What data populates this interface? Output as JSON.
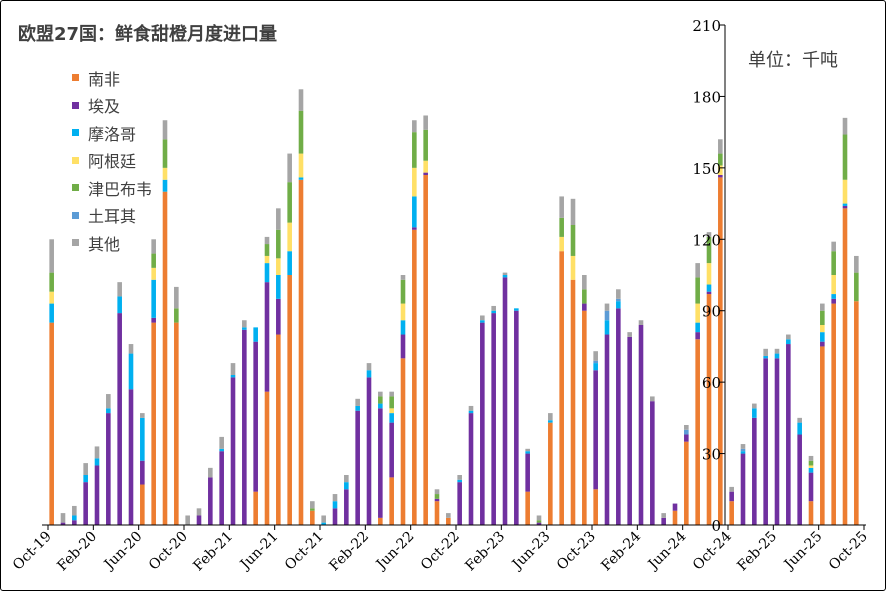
{
  "chart_data": {
    "type": "bar",
    "stacked": true,
    "title": "欧盟27国：鲜食甜橙月度进口量",
    "unit_label": "单位：千吨",
    "ylim": [
      0,
      210
    ],
    "yticks": [
      0,
      30,
      60,
      90,
      120,
      150,
      180,
      210
    ],
    "y_axis_position": "right",
    "legend_position": "top-left",
    "x_labels": [
      "Oct-19",
      "Feb-20",
      "Jun-20",
      "Oct-20",
      "Feb-21",
      "Jun-21",
      "Oct-21",
      "Feb-22",
      "Jun-22",
      "Oct-22",
      "Feb-23",
      "Jun-23",
      "Oct-23",
      "Feb-24",
      "Jun-24",
      "Oct-24",
      "Feb-25",
      "Jun-25",
      "Oct-25"
    ],
    "x_label_positions": [
      0,
      4,
      8,
      12,
      16,
      20,
      24,
      28,
      32,
      36,
      40,
      44,
      48,
      52,
      56,
      60,
      64,
      68,
      72
    ],
    "series": [
      {
        "name": "南非",
        "color": "#ED7D31",
        "values": [
          85,
          0,
          0,
          0,
          0,
          0,
          0,
          0,
          17,
          85,
          140,
          85,
          0,
          0,
          0,
          0,
          0,
          0,
          14,
          56,
          80,
          105,
          145,
          6,
          0,
          0,
          0,
          0,
          0,
          3,
          20,
          70,
          124,
          147,
          10,
          3,
          0,
          0,
          0,
          0,
          0,
          0,
          14,
          0,
          43,
          115,
          103,
          90,
          15,
          0,
          0,
          0,
          0,
          0,
          0,
          6,
          35,
          78,
          97,
          146,
          10,
          0,
          0,
          0,
          0,
          0,
          0,
          10,
          75,
          93,
          133,
          94
        ]
      },
      {
        "name": "埃及",
        "color": "#7030A0",
        "values": [
          0,
          1,
          2,
          18,
          25,
          47,
          89,
          57,
          10,
          2,
          0,
          0,
          0,
          4,
          20,
          31,
          62,
          82,
          63,
          46,
          15,
          0,
          0,
          0,
          0,
          7,
          15,
          48,
          62,
          46,
          23,
          10,
          1,
          1,
          1,
          0,
          18,
          47,
          85,
          89,
          104,
          90,
          16,
          1,
          0,
          0,
          0,
          3,
          50,
          80,
          91,
          79,
          84,
          52,
          3,
          3,
          3,
          3,
          1,
          1,
          4,
          30,
          45,
          70,
          70,
          76,
          38,
          12,
          2,
          2,
          1,
          0
        ]
      },
      {
        "name": "摩洛哥",
        "color": "#00B0F0",
        "values": [
          8,
          0,
          2,
          3,
          3,
          2,
          7,
          15,
          18,
          16,
          5,
          0,
          0,
          0,
          0,
          1,
          1,
          1,
          6,
          8,
          10,
          10,
          1,
          0,
          1,
          3,
          3,
          2,
          3,
          2,
          4,
          6,
          13,
          0,
          0,
          0,
          1,
          1,
          1,
          1,
          1,
          1,
          1,
          0,
          1,
          0,
          0,
          0,
          3,
          6,
          3,
          0,
          0,
          0,
          0,
          0,
          0,
          4,
          3,
          0,
          0,
          1,
          4,
          1,
          2,
          2,
          5,
          2,
          4,
          2,
          1,
          0
        ]
      },
      {
        "name": "阿根廷",
        "color": "#FFE066",
        "values": [
          5,
          0,
          0,
          0,
          0,
          0,
          0,
          0,
          0,
          5,
          5,
          0,
          0,
          0,
          0,
          0,
          0,
          0,
          0,
          3,
          7,
          12,
          10,
          0,
          0,
          0,
          0,
          0,
          0,
          0,
          2,
          7,
          12,
          5,
          0,
          0,
          0,
          0,
          0,
          0,
          0,
          0,
          0,
          0,
          0,
          6,
          10,
          0,
          0,
          0,
          0,
          0,
          0,
          0,
          0,
          0,
          0,
          8,
          9,
          4,
          0,
          0,
          0,
          0,
          0,
          0,
          0,
          1,
          3,
          8,
          10,
          0
        ]
      },
      {
        "name": "津巴布韦",
        "color": "#70AD47",
        "values": [
          8,
          0,
          0,
          0,
          0,
          0,
          0,
          0,
          0,
          6,
          12,
          6,
          0,
          0,
          0,
          0,
          0,
          0,
          0,
          5,
          12,
          17,
          18,
          1,
          0,
          0,
          0,
          0,
          0,
          3,
          5,
          10,
          15,
          13,
          2,
          0,
          0,
          0,
          0,
          0,
          0,
          0,
          0,
          1,
          0,
          8,
          13,
          6,
          0,
          0,
          0,
          0,
          0,
          0,
          0,
          0,
          0,
          11,
          11,
          5,
          0,
          0,
          0,
          0,
          0,
          0,
          0,
          2,
          6,
          10,
          19,
          12
        ]
      },
      {
        "name": "土耳其",
        "color": "#5B9BD5",
        "values": [
          0,
          0,
          0,
          0,
          0,
          0,
          0,
          0,
          0,
          0,
          0,
          0,
          0,
          0,
          0,
          0,
          0,
          0,
          0,
          0,
          0,
          0,
          0,
          0,
          0,
          0,
          0,
          0,
          0,
          0,
          0,
          0,
          0,
          0,
          0,
          0,
          0,
          0,
          0,
          0,
          0,
          0,
          0,
          0,
          0,
          0,
          0,
          0,
          1,
          4,
          1,
          0,
          0,
          0,
          0,
          0,
          2,
          0,
          0,
          0,
          0,
          1,
          0,
          0,
          0,
          0,
          0,
          0,
          0,
          0,
          0,
          0
        ]
      },
      {
        "name": "其他",
        "color": "#A5A5A5",
        "values": [
          14,
          4,
          4,
          5,
          5,
          6,
          6,
          4,
          2,
          6,
          8,
          9,
          4,
          3,
          4,
          5,
          5,
          3,
          0,
          3,
          9,
          12,
          9,
          3,
          3,
          3,
          3,
          3,
          3,
          2,
          2,
          2,
          5,
          6,
          2,
          2,
          2,
          2,
          2,
          2,
          1,
          0,
          1,
          2,
          3,
          9,
          11,
          6,
          4,
          3,
          4,
          2,
          2,
          2,
          2,
          0,
          2,
          6,
          2,
          6,
          2,
          2,
          2,
          3,
          2,
          2,
          2,
          2,
          3,
          4,
          7,
          7
        ]
      }
    ]
  }
}
